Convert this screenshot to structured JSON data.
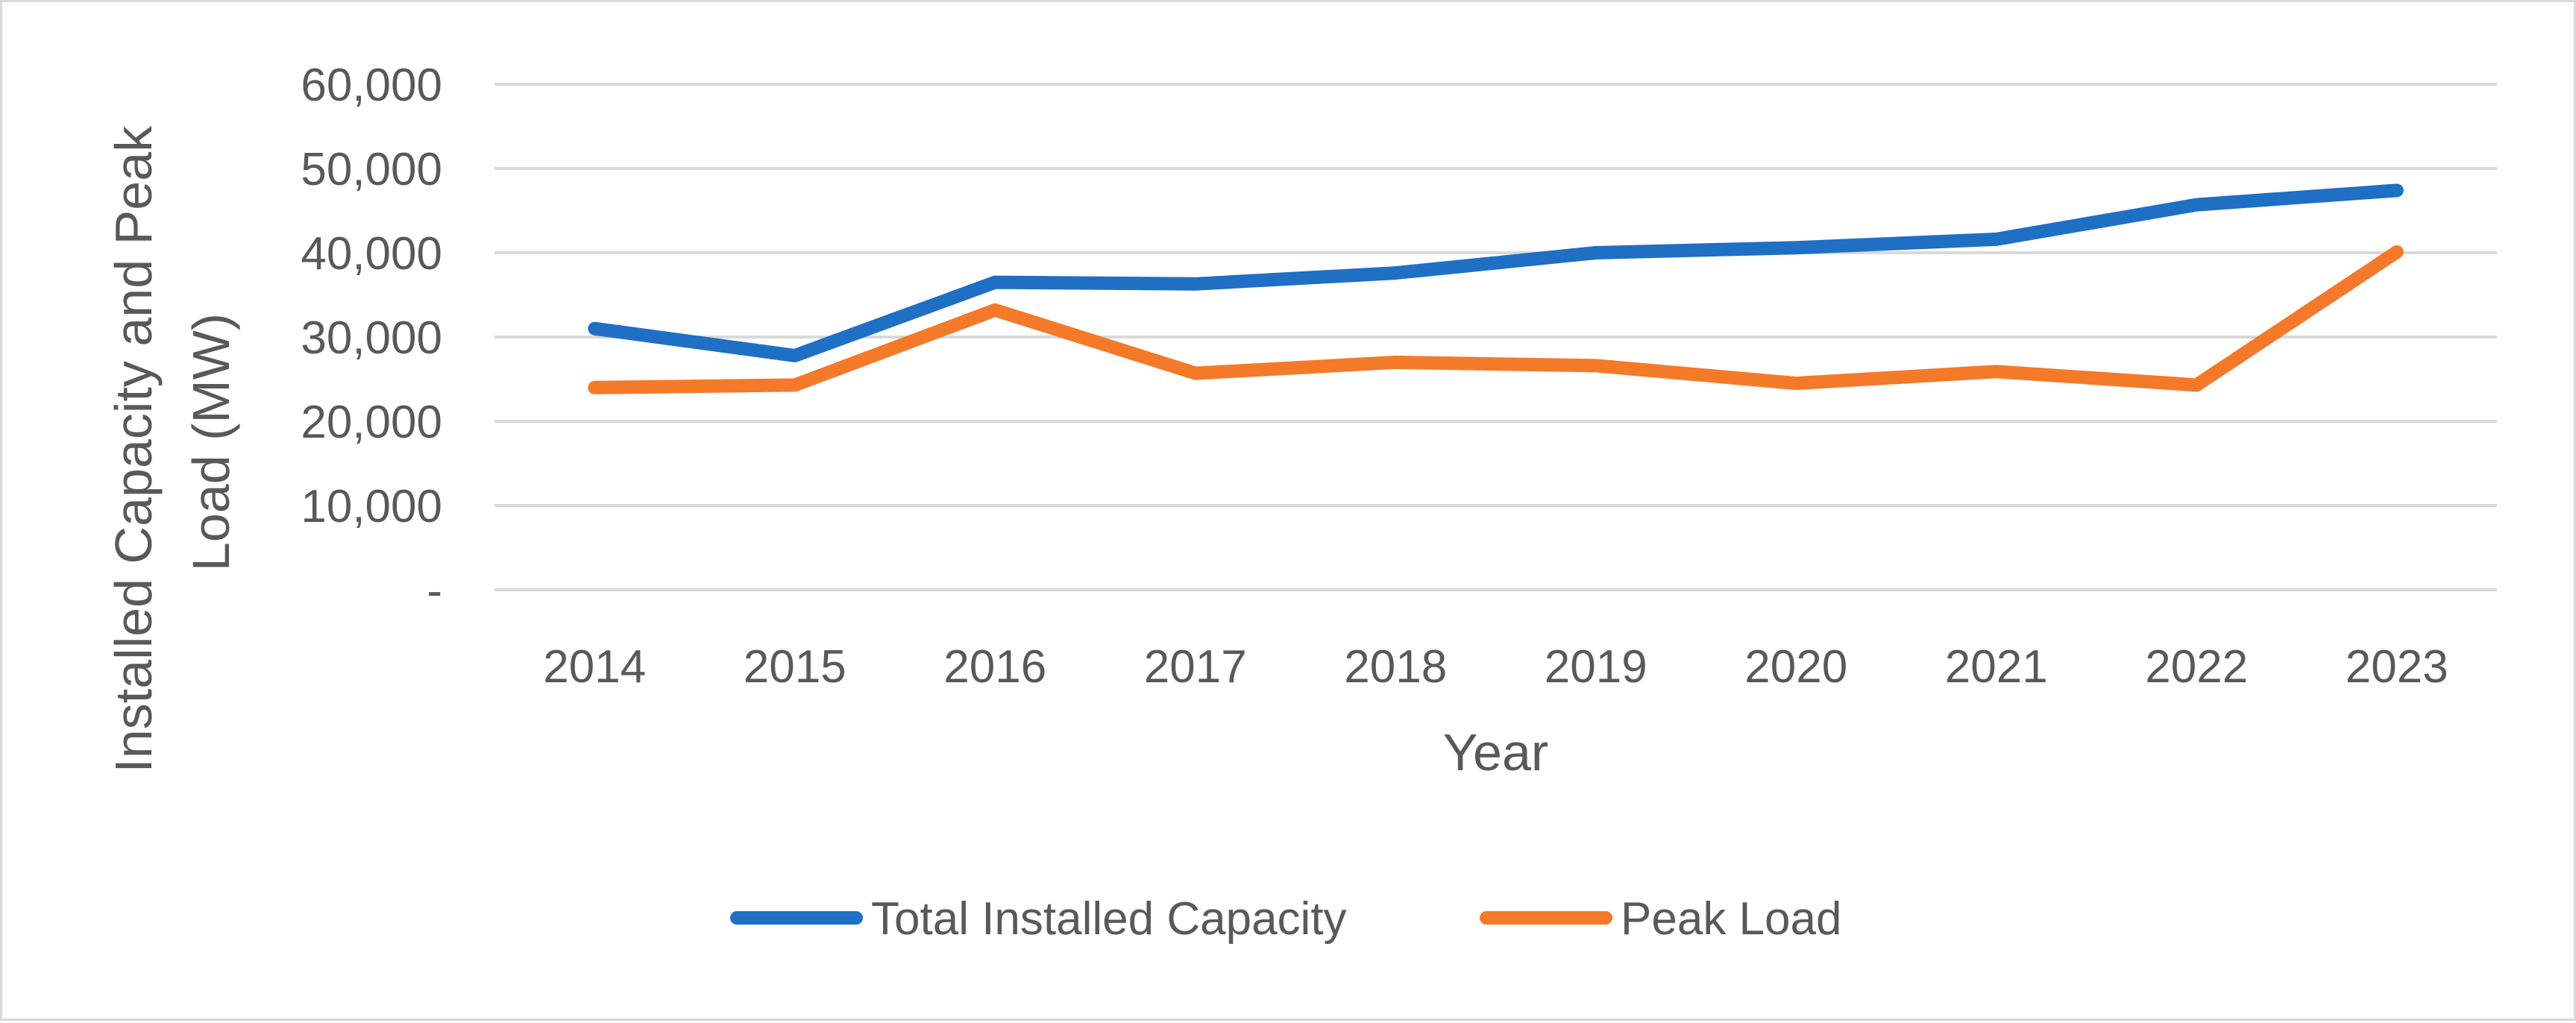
{
  "chart_data": {
    "type": "line",
    "title": "",
    "xlabel": "Year",
    "ylabel": "Installed Capacity and Peak Load (MW)",
    "ylabel_lines": [
      "Installed Capacity and Peak",
      "Load (MW)"
    ],
    "categories": [
      "2014",
      "2015",
      "2016",
      "2017",
      "2018",
      "2019",
      "2020",
      "2021",
      "2022",
      "2023"
    ],
    "ylim": [
      0,
      60000
    ],
    "yticks": [
      0,
      10000,
      20000,
      30000,
      40000,
      50000,
      60000
    ],
    "ytick_labels": [
      "-",
      "10,000",
      "20,000",
      "30,000",
      "40,000",
      "50,000",
      "60,000"
    ],
    "grid": true,
    "legend_position": "bottom",
    "series": [
      {
        "name": "Total Installed Capacity",
        "color": "#1f6fc5",
        "values": [
          31000,
          27800,
          36500,
          36300,
          37600,
          40000,
          40600,
          41600,
          45700,
          47400
        ]
      },
      {
        "name": "Peak Load",
        "color": "#f47a2a",
        "values": [
          24000,
          24300,
          33200,
          25700,
          27000,
          26600,
          24500,
          25900,
          24300,
          40100
        ]
      }
    ]
  }
}
